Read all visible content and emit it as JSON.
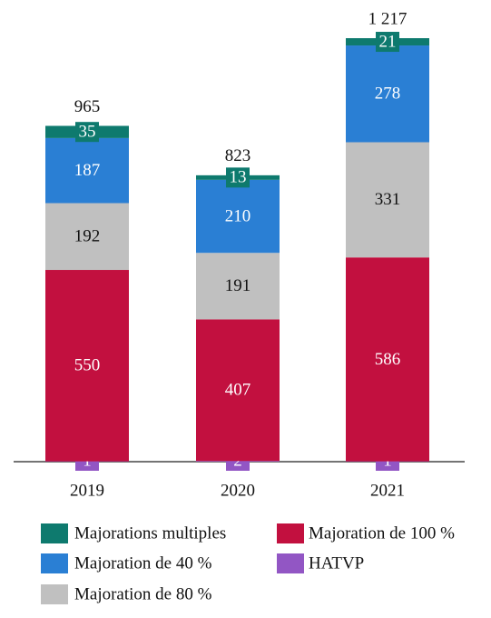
{
  "chart_data": {
    "type": "stacked-bar",
    "categories": [
      "2019",
      "2020",
      "2021"
    ],
    "series": [
      {
        "name": "HATVP",
        "color": "#9256c4",
        "values": [
          1,
          2,
          1
        ]
      },
      {
        "name": "Majoration de 100 %",
        "color": "#c2103f",
        "values": [
          550,
          407,
          586
        ]
      },
      {
        "name": "Majoration de 80 %",
        "color": "#c0c0c0",
        "values": [
          192,
          191,
          331
        ]
      },
      {
        "name": "Majoration de 40 %",
        "color": "#2a7fd4",
        "values": [
          187,
          210,
          278
        ]
      },
      {
        "name": "Majorations multiples",
        "color": "#0e7a6e",
        "values": [
          35,
          13,
          21
        ]
      }
    ],
    "totals": {
      "values": [
        965,
        823,
        1217
      ],
      "value_labels": [
        "965",
        "823",
        "1 217"
      ]
    }
  }
}
